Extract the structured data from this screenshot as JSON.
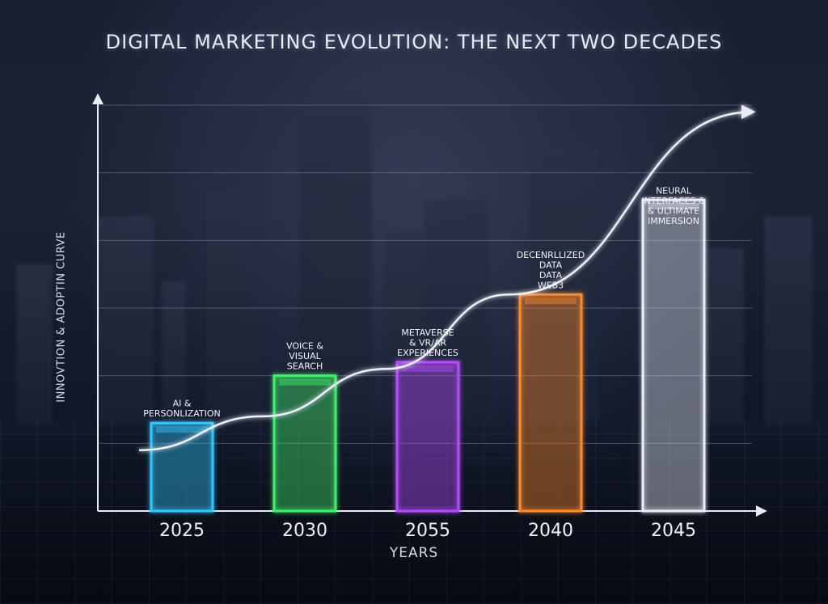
{
  "title": "DIGITAL MARKETING EVOLUTION: THE NEXT TWO DECADES",
  "chart_data": {
    "type": "bar",
    "title": "DIGITAL MARKETING EVOLUTION: THE NEXT TWO DECADES",
    "xlabel": "YEARS",
    "ylabel": "INNOVTION & ADOPTIN CURVE",
    "categories": [
      "2025",
      "2030",
      "2055",
      "2040",
      "2045"
    ],
    "values": [
      1.3,
      2.0,
      2.2,
      3.2,
      4.6
    ],
    "ylim": [
      0,
      6
    ],
    "grid": true,
    "legend": "none",
    "bar_labels": [
      [
        "AI &",
        "PERSONLIZATION"
      ],
      [
        "VOICE &",
        "VISUAL",
        "SEARCH"
      ],
      [
        "METAVERSE",
        "& VR/AR",
        "EXPERIENCES"
      ],
      [
        "DECENRLLIZED",
        "DATA",
        "DATA",
        "WEB3"
      ],
      [
        "NEURAL",
        "INTERFACES &",
        "& ULTIMATE",
        "IMMERSION"
      ]
    ],
    "bar_colors": [
      "#33c8ff",
      "#3ef26a",
      "#b64bff",
      "#ff8a2a",
      "#e9eef7"
    ],
    "trend_curve": {
      "values": [
        0.9,
        1.4,
        2.1,
        3.2,
        5.9
      ],
      "arrow": true
    }
  }
}
